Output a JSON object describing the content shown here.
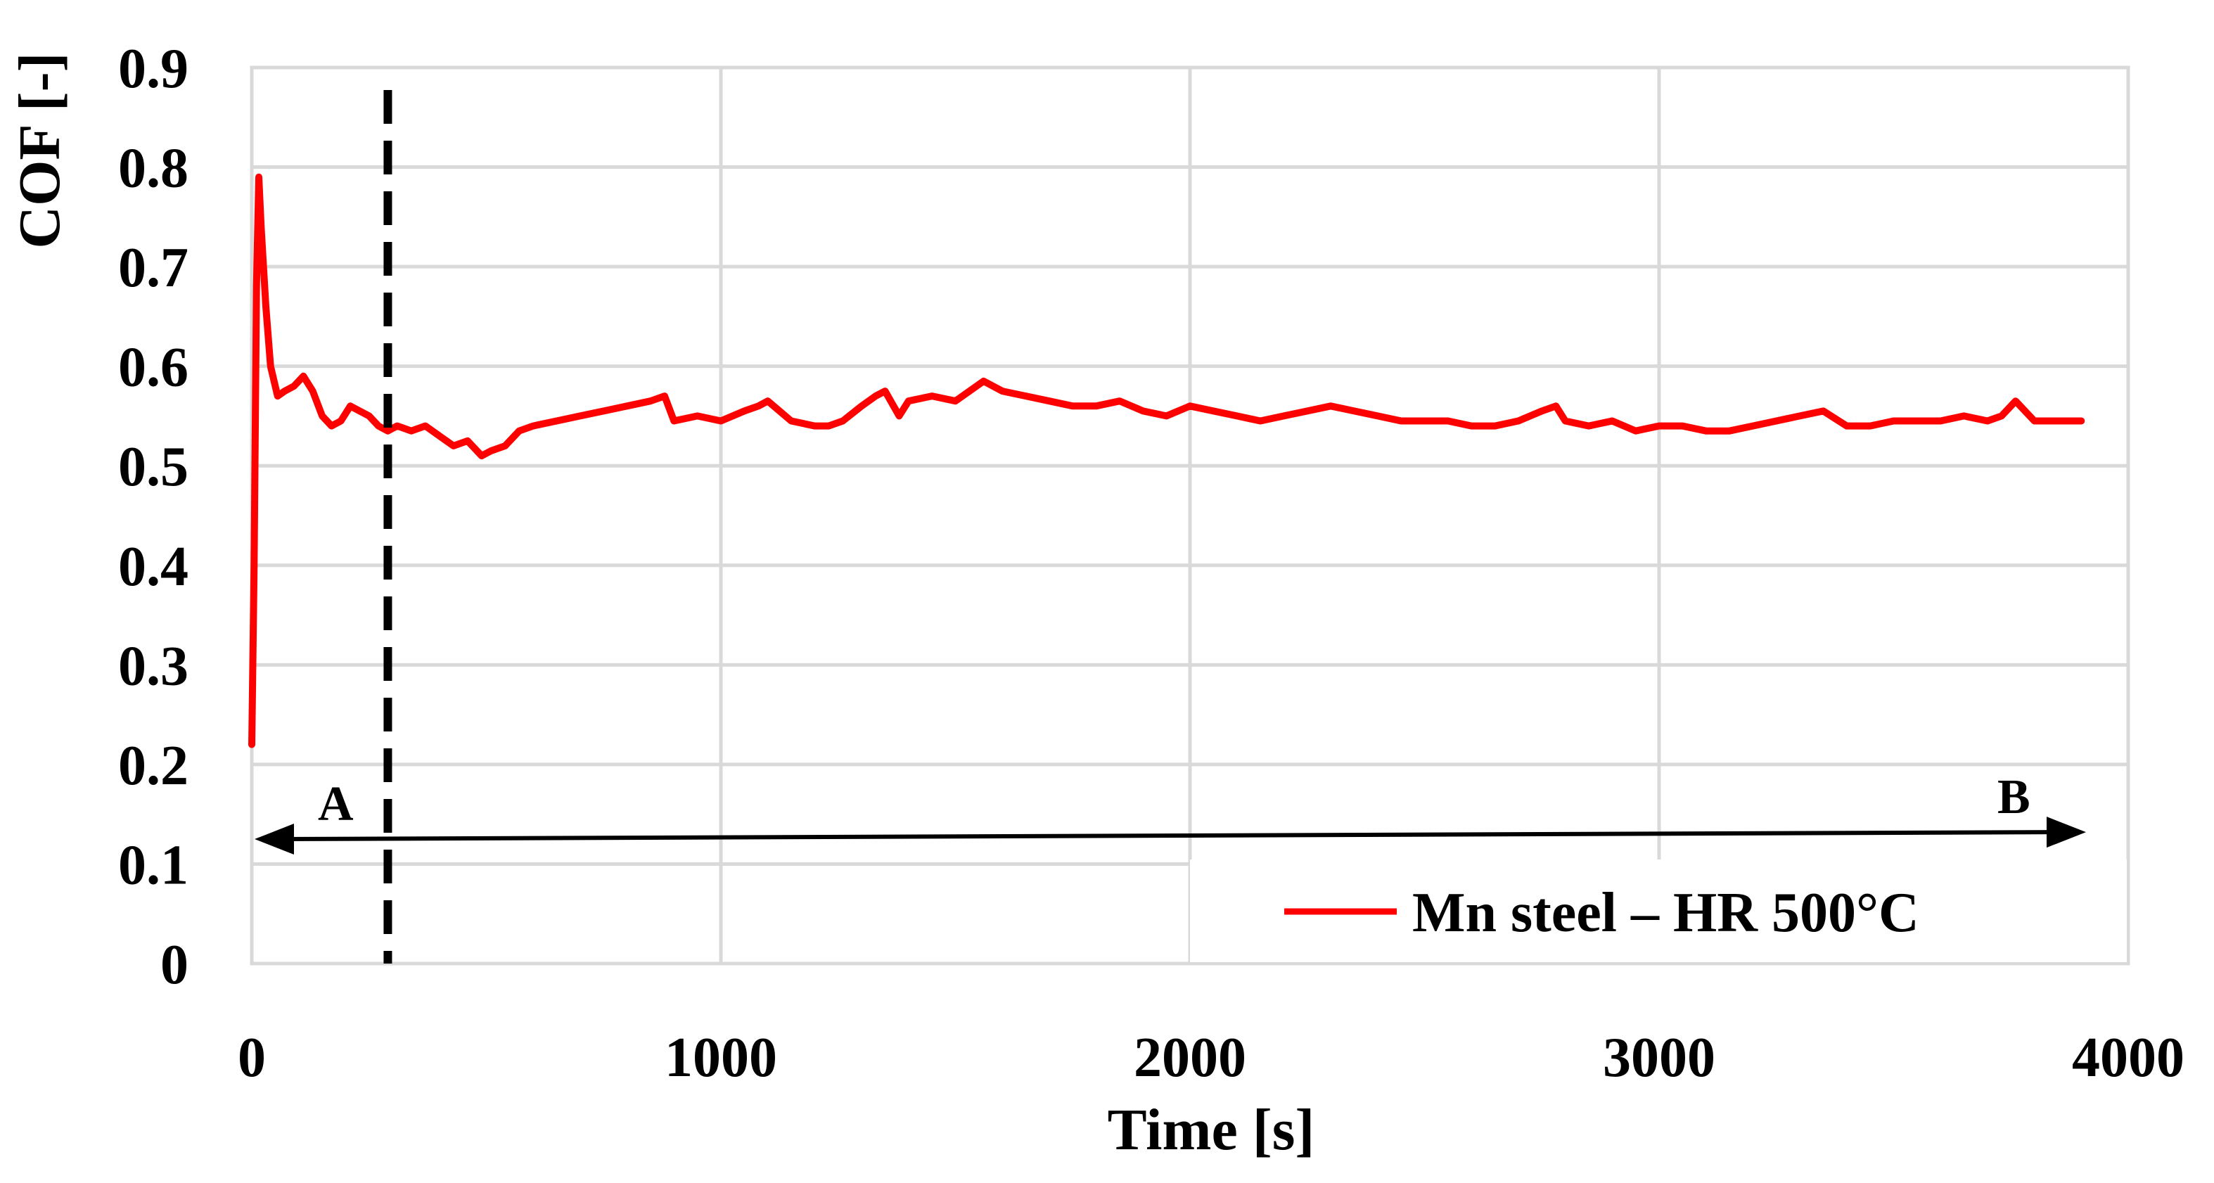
{
  "chart_data": {
    "type": "line",
    "xlabel": "Time [s]",
    "ylabel": "COF [-]",
    "xlim": [
      0,
      4000
    ],
    "ylim": [
      0,
      0.9
    ],
    "xticks": [
      "0",
      "1000",
      "2000",
      "3000",
      "4000"
    ],
    "yticks": [
      "0",
      "0.1",
      "0.2",
      "0.3",
      "0.4",
      "0.5",
      "0.6",
      "0.7",
      "0.8",
      "0.9"
    ],
    "grid": true,
    "legend_position": "bottom-right",
    "series": [
      {
        "name": "Mn steel – HR 500°C",
        "color": "#ff0000",
        "x": [
          0,
          5,
          10,
          15,
          20,
          30,
          40,
          55,
          70,
          90,
          110,
          130,
          150,
          170,
          190,
          210,
          230,
          250,
          270,
          290,
          310,
          340,
          370,
          400,
          430,
          460,
          490,
          510,
          540,
          570,
          600,
          650,
          700,
          750,
          800,
          850,
          880,
          900,
          950,
          1000,
          1050,
          1080,
          1100,
          1150,
          1200,
          1230,
          1260,
          1300,
          1330,
          1350,
          1380,
          1400,
          1450,
          1500,
          1530,
          1560,
          1600,
          1650,
          1700,
          1750,
          1800,
          1850,
          1900,
          1950,
          2000,
          2050,
          2100,
          2150,
          2200,
          2250,
          2300,
          2350,
          2400,
          2450,
          2500,
          2550,
          2600,
          2650,
          2700,
          2750,
          2780,
          2800,
          2850,
          2900,
          2950,
          3000,
          3050,
          3100,
          3150,
          3200,
          3250,
          3300,
          3350,
          3400,
          3450,
          3500,
          3550,
          3600,
          3650,
          3700,
          3730,
          3760,
          3800,
          3850,
          3900
        ],
        "y": [
          0.22,
          0.4,
          0.68,
          0.79,
          0.74,
          0.66,
          0.6,
          0.57,
          0.575,
          0.58,
          0.59,
          0.575,
          0.55,
          0.54,
          0.545,
          0.56,
          0.555,
          0.55,
          0.54,
          0.535,
          0.54,
          0.535,
          0.54,
          0.53,
          0.52,
          0.525,
          0.51,
          0.515,
          0.52,
          0.535,
          0.54,
          0.545,
          0.55,
          0.555,
          0.56,
          0.565,
          0.57,
          0.545,
          0.55,
          0.545,
          0.555,
          0.56,
          0.565,
          0.545,
          0.54,
          0.54,
          0.545,
          0.56,
          0.57,
          0.575,
          0.55,
          0.565,
          0.57,
          0.565,
          0.575,
          0.585,
          0.575,
          0.57,
          0.565,
          0.56,
          0.56,
          0.565,
          0.555,
          0.55,
          0.56,
          0.555,
          0.55,
          0.545,
          0.55,
          0.555,
          0.56,
          0.555,
          0.55,
          0.545,
          0.545,
          0.545,
          0.54,
          0.54,
          0.545,
          0.555,
          0.56,
          0.545,
          0.54,
          0.545,
          0.535,
          0.54,
          0.54,
          0.535,
          0.535,
          0.54,
          0.545,
          0.55,
          0.555,
          0.54,
          0.54,
          0.545,
          0.545,
          0.545,
          0.55,
          0.545,
          0.55,
          0.565,
          0.545,
          0.545,
          0.545
        ]
      }
    ],
    "annotations": {
      "divider_x": 290,
      "region_a": "A",
      "region_b": "B"
    }
  }
}
